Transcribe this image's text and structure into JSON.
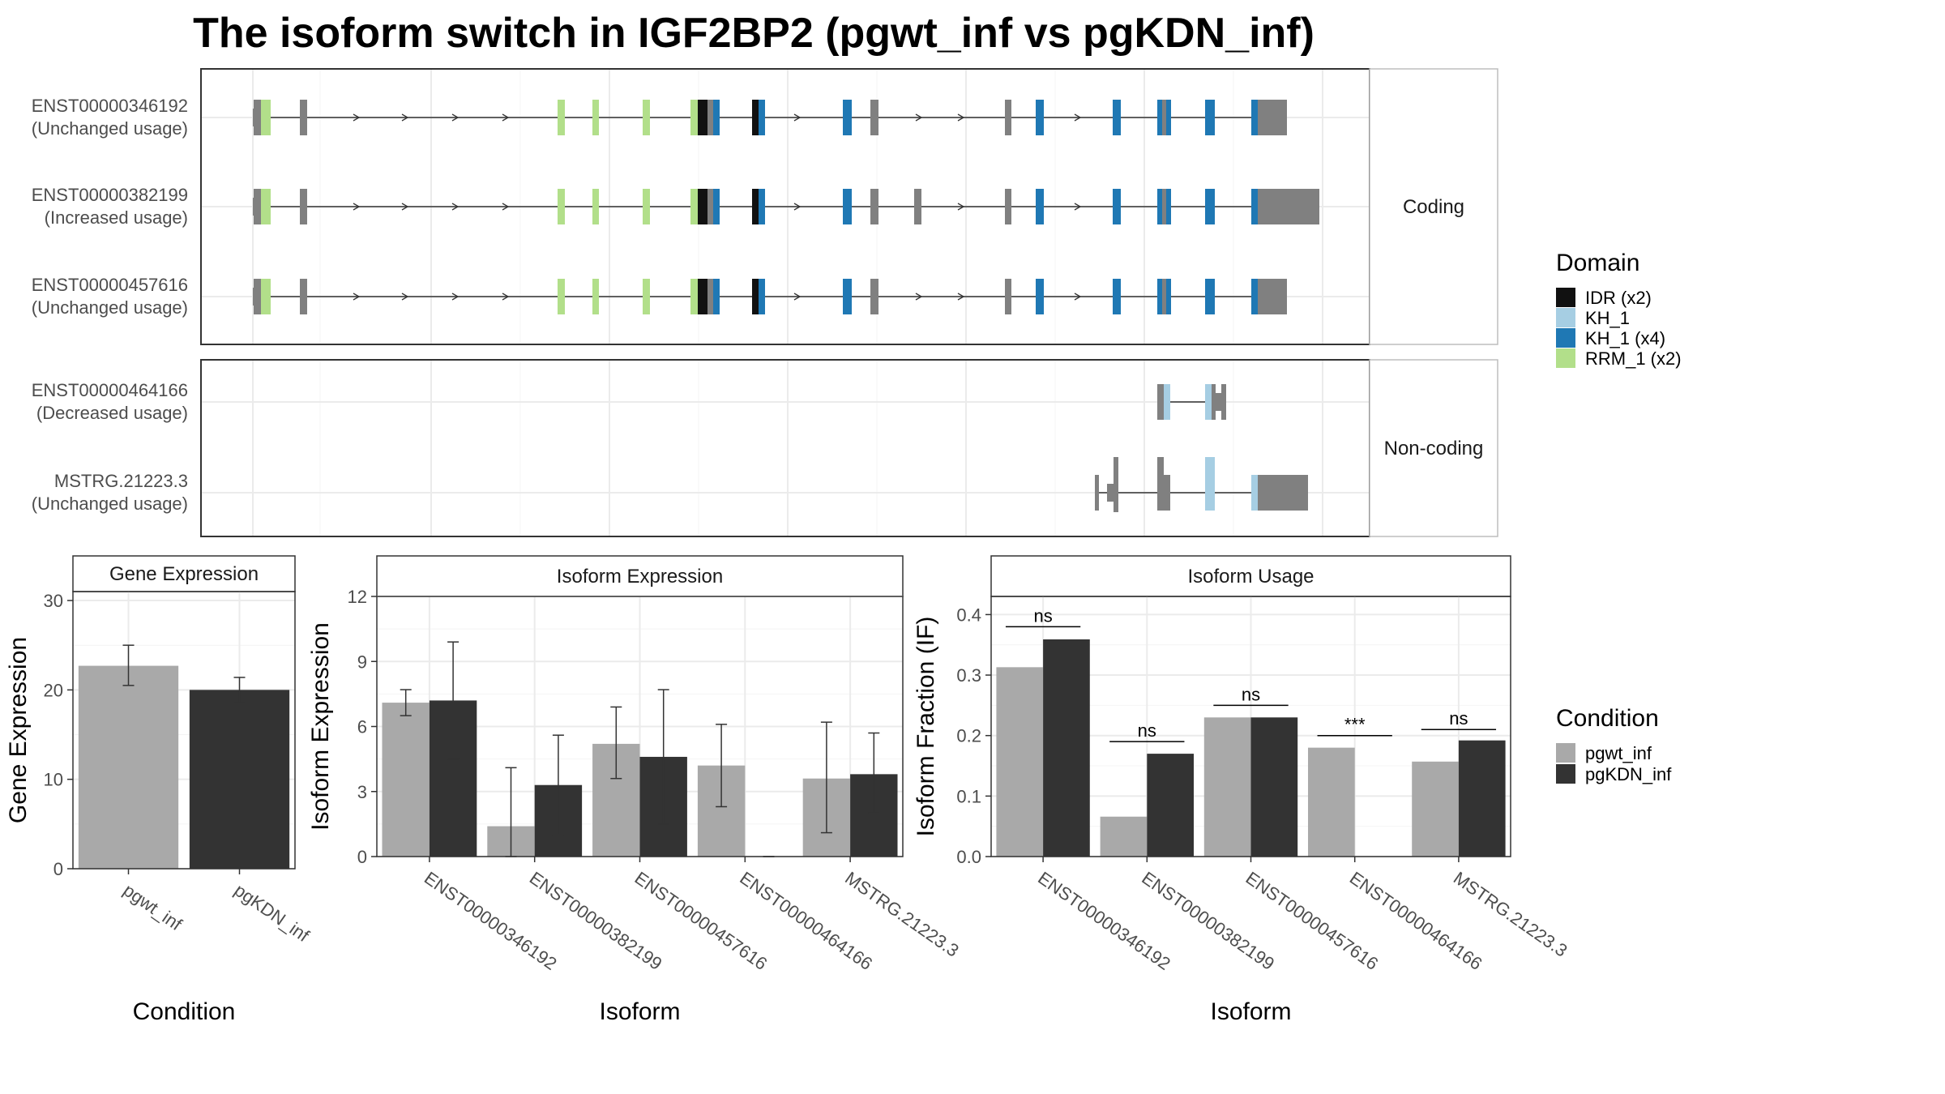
{
  "title": "The isoform switch in IGF2BP2 (pgwt_inf vs pgKDN_inf)",
  "colors": {
    "IDR (x2)": "#111111",
    "KH_1": "#a6cee3",
    "KH_1 (x4)": "#1f78b4",
    "RRM_1 (x2)": "#b2df8a",
    "exon": "#808080",
    "pgwt_inf": "#a9a9a9",
    "pgKDN_inf": "#333333",
    "grid": "#ebebeb"
  },
  "structure": {
    "coding_label": "Coding",
    "noncoding_label": "Non-coding",
    "transcripts": [
      {
        "group": "coding",
        "id": "ENST00000346192",
        "usage": "(Unchanged usage)",
        "utr3_end": 1.04
      },
      {
        "group": "coding",
        "id": "ENST00000382199",
        "usage": "(Increased usage)",
        "utr3_end": 1.08
      },
      {
        "group": "coding",
        "id": "ENST00000457616",
        "usage": "(Unchanged usage)",
        "utr3_end": 1.04
      },
      {
        "group": "noncoding",
        "id": "ENST00000464166",
        "usage": "(Decreased usage)"
      },
      {
        "group": "noncoding",
        "id": "MSTRG.21223.3",
        "usage": "(Unchanged usage)"
      }
    ]
  },
  "legend_domain": {
    "title": "Domain",
    "items": [
      "IDR (x2)",
      "KH_1",
      "KH_1 (x4)",
      "RRM_1 (x2)"
    ]
  },
  "legend_condition": {
    "title": "Condition",
    "items": [
      "pgwt_inf",
      "pgKDN_inf"
    ]
  },
  "chart_data": [
    {
      "type": "bar",
      "title": "Gene Expression",
      "xlabel": "Condition",
      "ylabel": "Gene Expression",
      "categories": [
        "pgwt_inf",
        "pgKDN_inf"
      ],
      "ylim": [
        0,
        31
      ],
      "yticks": [
        0,
        10,
        20,
        30
      ],
      "series": [
        {
          "name": "pgwt_inf",
          "values": [
            22.7,
            null
          ],
          "err_low": [
            20.5,
            null
          ],
          "err_high": [
            25.0,
            null
          ]
        },
        {
          "name": "pgKDN_inf",
          "values": [
            null,
            20.0
          ],
          "err_low": [
            null,
            18.6
          ],
          "err_high": [
            null,
            21.4
          ]
        }
      ]
    },
    {
      "type": "bar",
      "title": "Isoform Expression",
      "xlabel": "Isoform",
      "ylabel": "Isoform Expression",
      "categories": [
        "ENST00000346192",
        "ENST00000382199",
        "ENST00000457616",
        "ENST00000464166",
        "MSTRG.21223.3"
      ],
      "ylim": [
        0,
        12
      ],
      "yticks": [
        0,
        3,
        6,
        9,
        12
      ],
      "series": [
        {
          "name": "pgwt_inf",
          "values": [
            7.1,
            1.4,
            5.2,
            4.2,
            3.6
          ],
          "err_low": [
            6.5,
            0.0,
            3.6,
            2.3,
            1.1
          ],
          "err_high": [
            7.7,
            4.1,
            6.9,
            6.1,
            6.2
          ]
        },
        {
          "name": "pgKDN_inf",
          "values": [
            7.2,
            3.3,
            4.6,
            0.0,
            3.8
          ],
          "err_low": [
            4.5,
            1.0,
            1.5,
            0.0,
            2.0
          ],
          "err_high": [
            9.9,
            5.6,
            7.7,
            0.0,
            5.7
          ]
        }
      ]
    },
    {
      "type": "bar",
      "title": "Isoform Usage",
      "xlabel": "Isoform",
      "ylabel": "Isoform Fraction (IF)",
      "categories": [
        "ENST00000346192",
        "ENST00000382199",
        "ENST00000457616",
        "ENST00000464166",
        "MSTRG.21223.3"
      ],
      "ylim": [
        0,
        0.43
      ],
      "yticks": [
        0.0,
        0.1,
        0.2,
        0.3,
        0.4
      ],
      "ytick_labels": [
        "0.0",
        "0.1",
        "0.2",
        "0.3",
        "0.4"
      ],
      "series": [
        {
          "name": "pgwt_inf",
          "values": [
            0.313,
            0.066,
            0.23,
            0.18,
            0.157
          ]
        },
        {
          "name": "pgKDN_inf",
          "values": [
            0.359,
            0.17,
            0.23,
            0.0,
            0.192
          ]
        }
      ],
      "significance": [
        "ns",
        "ns",
        "ns",
        "***",
        "ns"
      ],
      "significance_y": [
        0.38,
        0.19,
        0.25,
        0.2,
        0.21
      ]
    }
  ]
}
